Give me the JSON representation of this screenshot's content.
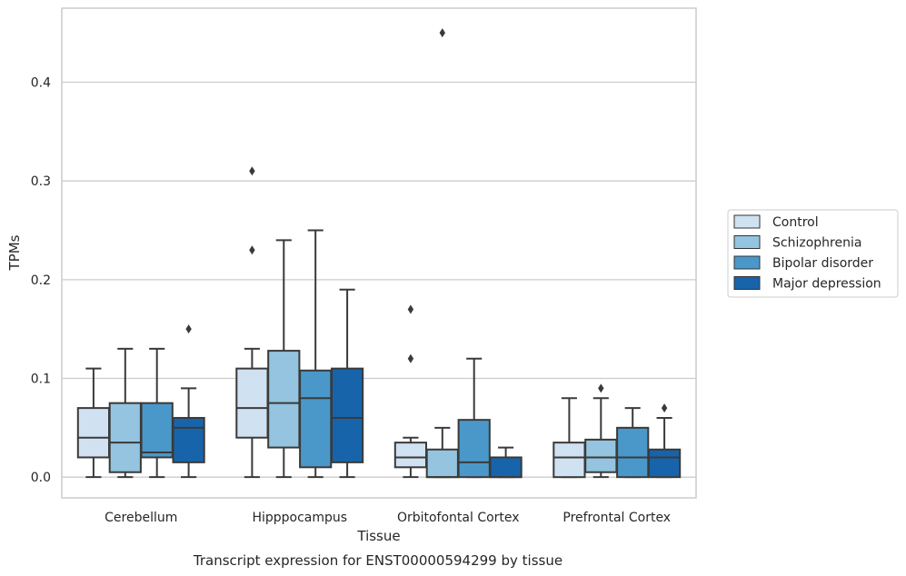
{
  "caption": "Transcript expression for ENST00000594299 by tissue",
  "chart_data": {
    "type": "box",
    "xlabel": "Tissue",
    "ylabel": "TPMs",
    "ylim": [
      -0.021,
      0.475
    ],
    "yticks": [
      0.0,
      0.1,
      0.2,
      0.3,
      0.4
    ],
    "ytick_labels": [
      "0.0",
      "0.1",
      "0.2",
      "0.3",
      "0.4"
    ],
    "grid": "horizontal",
    "legend_position": "right",
    "categories": [
      "Cerebellum",
      "Hipppocampus",
      "Orbitofontal Cortex",
      "Prefrontal Cortex"
    ],
    "series": [
      {
        "name": "Control",
        "color": "#d0e1f2",
        "boxes": [
          {
            "whislo": 0.0,
            "q1": 0.02,
            "med": 0.04,
            "q3": 0.07,
            "whishi": 0.11,
            "fliers": []
          },
          {
            "whislo": 0.0,
            "q1": 0.04,
            "med": 0.07,
            "q3": 0.11,
            "whishi": 0.13,
            "fliers": [
              0.23,
              0.31
            ]
          },
          {
            "whislo": 0.0,
            "q1": 0.01,
            "med": 0.02,
            "q3": 0.035,
            "whishi": 0.04,
            "fliers": [
              0.12,
              0.17
            ]
          },
          {
            "whislo": 0.0,
            "q1": 0.0,
            "med": 0.02,
            "q3": 0.035,
            "whishi": 0.08,
            "fliers": []
          }
        ]
      },
      {
        "name": "Schizophrenia",
        "color": "#94c4df",
        "boxes": [
          {
            "whislo": 0.0,
            "q1": 0.005,
            "med": 0.035,
            "q3": 0.075,
            "whishi": 0.13,
            "fliers": []
          },
          {
            "whislo": 0.0,
            "q1": 0.03,
            "med": 0.075,
            "q3": 0.128,
            "whishi": 0.24,
            "fliers": []
          },
          {
            "whislo": 0.0,
            "q1": 0.0,
            "med": 0.0,
            "q3": 0.028,
            "whishi": 0.05,
            "fliers": [
              0.45
            ]
          },
          {
            "whislo": 0.0,
            "q1": 0.005,
            "med": 0.02,
            "q3": 0.038,
            "whishi": 0.08,
            "fliers": [
              0.09
            ]
          }
        ]
      },
      {
        "name": "Bipolar disorder",
        "color": "#4a98c9",
        "boxes": [
          {
            "whislo": 0.0,
            "q1": 0.02,
            "med": 0.025,
            "q3": 0.075,
            "whishi": 0.13,
            "fliers": []
          },
          {
            "whislo": 0.0,
            "q1": 0.01,
            "med": 0.08,
            "q3": 0.108,
            "whishi": 0.25,
            "fliers": []
          },
          {
            "whislo": 0.0,
            "q1": 0.0,
            "med": 0.015,
            "q3": 0.058,
            "whishi": 0.12,
            "fliers": []
          },
          {
            "whislo": 0.0,
            "q1": 0.0,
            "med": 0.02,
            "q3": 0.05,
            "whishi": 0.07,
            "fliers": []
          }
        ]
      },
      {
        "name": "Major depression",
        "color": "#1764ab",
        "boxes": [
          {
            "whislo": 0.0,
            "q1": 0.015,
            "med": 0.05,
            "q3": 0.06,
            "whishi": 0.09,
            "fliers": [
              0.15
            ]
          },
          {
            "whislo": 0.0,
            "q1": 0.015,
            "med": 0.06,
            "q3": 0.11,
            "whishi": 0.19,
            "fliers": []
          },
          {
            "whislo": 0.0,
            "q1": 0.0,
            "med": 0.0,
            "q3": 0.02,
            "whishi": 0.03,
            "fliers": []
          },
          {
            "whislo": 0.0,
            "q1": 0.0,
            "med": 0.02,
            "q3": 0.028,
            "whishi": 0.06,
            "fliers": [
              0.07
            ]
          }
        ]
      }
    ]
  }
}
